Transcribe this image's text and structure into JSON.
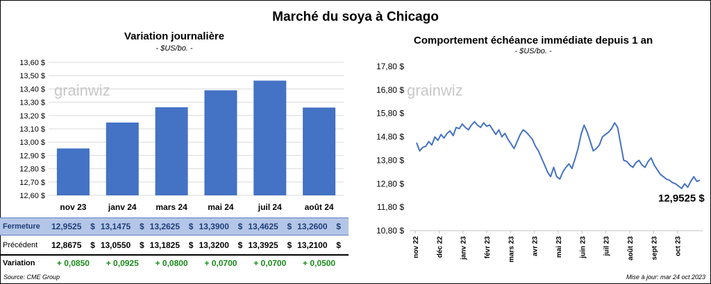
{
  "title": "Marché du soya à Chicago",
  "left": {
    "subtitle": "Variation  journalière",
    "unit": "- $US/bo. -",
    "watermark": "grainwiz",
    "table": {
      "rows": [
        {
          "label": "Fermeture",
          "values": [
            "12,9525",
            "13,1475",
            "13,2625",
            "13,3900",
            "13,4625",
            "13,2600"
          ]
        },
        {
          "label": "Précédent",
          "values": [
            "12,8675",
            "13,0550",
            "13,1825",
            "13,3200",
            "13,3925",
            "13,2100"
          ]
        }
      ],
      "currency": "$",
      "variation": {
        "label": "Variation",
        "values": [
          "+ 0,0850",
          "+ 0,0925",
          "+ 0,0800",
          "+ 0,0700",
          "+ 0,0700",
          "+ 0,0500"
        ]
      }
    }
  },
  "right": {
    "subtitle": "Comportement  échéance immédiate depuis 1 an",
    "unit": "- $US/bo. -",
    "watermark": "grainwiz",
    "last_value": "12,9525 $"
  },
  "footer": {
    "source": "Source: CME Group",
    "updated": "Mise à jour: mar 24 oct 2023"
  },
  "colors": {
    "bar": "#4472c4",
    "line": "#4472c4",
    "highlight_row": "#b4c6e7",
    "positive": "#1a8a1a"
  },
  "chart_data": [
    {
      "type": "bar",
      "categories": [
        "nov 23",
        "janv 24",
        "mars 24",
        "mai 24",
        "juil 24",
        "août 24"
      ],
      "values": [
        12.9525,
        13.1475,
        13.2625,
        13.39,
        13.4625,
        13.26
      ],
      "ylim": [
        12.6,
        13.6
      ],
      "yticks": [
        "12,60 $",
        "12,70 $",
        "12,80 $",
        "12,90 $",
        "13,00 $",
        "13,10 $",
        "13,20 $",
        "13,30 $",
        "13,40 $",
        "13,50 $",
        "13,60 $"
      ],
      "grid": true
    },
    {
      "type": "line",
      "x_labels": [
        "nov 22",
        "déc 22",
        "janv 23",
        "févr 23",
        "mars 23",
        "avr 23",
        "mai 23",
        "juin 23",
        "juil 23",
        "août 23",
        "sept 23",
        "oct 23"
      ],
      "ylim": [
        10.8,
        17.8
      ],
      "yticks": [
        "10,80 $",
        "11,80 $",
        "12,80 $",
        "13,80 $",
        "14,80 $",
        "15,80 $",
        "16,80 $",
        "17,80 $"
      ],
      "values": [
        14.55,
        14.2,
        14.35,
        14.4,
        14.6,
        14.45,
        14.8,
        14.65,
        14.9,
        14.75,
        14.95,
        15.05,
        14.85,
        15.2,
        15.15,
        15.35,
        15.2,
        15.1,
        15.3,
        15.45,
        15.3,
        15.2,
        15.4,
        15.25,
        15.3,
        15.1,
        14.9,
        15.1,
        14.8,
        14.95,
        14.7,
        14.5,
        14.3,
        14.6,
        14.9,
        15.1,
        15.0,
        14.85,
        14.7,
        14.4,
        14.2,
        13.9,
        13.6,
        13.3,
        13.1,
        13.5,
        13.1,
        13.0,
        13.3,
        13.5,
        13.65,
        13.45,
        13.85,
        14.3,
        14.9,
        15.3,
        15.0,
        14.6,
        14.2,
        14.3,
        14.45,
        14.8,
        14.9,
        15.0,
        15.15,
        15.4,
        15.2,
        14.5,
        13.8,
        13.75,
        13.6,
        13.5,
        13.7,
        13.8,
        13.6,
        13.5,
        13.75,
        13.9,
        13.6,
        13.4,
        13.2,
        13.1,
        13.0,
        12.95,
        12.85,
        12.8,
        12.7,
        12.6,
        12.8,
        12.65,
        12.9,
        13.1,
        12.9,
        12.9525
      ],
      "last_value": 12.9525,
      "grid": false
    }
  ]
}
